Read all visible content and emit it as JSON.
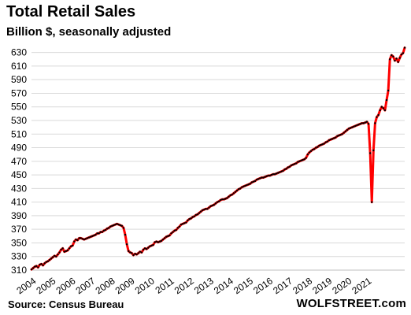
{
  "title": "Total Retail Sales",
  "subtitle": "Billion $, seasonally adjusted",
  "source": "Source: Census Bureau",
  "brand": "WOLFSTREET.com",
  "colors": {
    "line": "#ff0000",
    "markers": "#000000",
    "grid": "#d9d9d9",
    "axis": "#bfbfbf"
  },
  "chart_data": {
    "type": "line",
    "title": "Total Retail Sales",
    "subtitle": "Billion $, seasonally adjusted",
    "xlabel": "",
    "ylabel": "",
    "ylim": [
      310,
      640
    ],
    "yticks": [
      310,
      330,
      350,
      370,
      390,
      410,
      430,
      450,
      470,
      490,
      510,
      530,
      550,
      570,
      590,
      610,
      630
    ],
    "xticks": [
      "2004",
      "2005",
      "2006",
      "2007",
      "2008",
      "2009",
      "2010",
      "2011",
      "2012",
      "2013",
      "2014",
      "2015",
      "2016",
      "2017",
      "2018",
      "2019",
      "2020",
      "2021"
    ],
    "grid": true,
    "frequency": "monthly",
    "series": [
      {
        "values": [
          311,
          313,
          315,
          316,
          314,
          318,
          319,
          317,
          320,
          322,
          323,
          325,
          327,
          329,
          331,
          330,
          333,
          336,
          340,
          342,
          337,
          338,
          339,
          342,
          345,
          346,
          352,
          355,
          354,
          357,
          357,
          356,
          355,
          356,
          357,
          358,
          359,
          360,
          361,
          362,
          364,
          364,
          366,
          366,
          368,
          369,
          371,
          372,
          374,
          375,
          376,
          377,
          378,
          377,
          376,
          375,
          372,
          362,
          348,
          338,
          336,
          335,
          332,
          334,
          333,
          335,
          337,
          336,
          340,
          342,
          341,
          343,
          345,
          346,
          347,
          351,
          352,
          351,
          352,
          353,
          355,
          357,
          359,
          360,
          361,
          364,
          366,
          368,
          369,
          372,
          374,
          377,
          378,
          379,
          380,
          383,
          385,
          386,
          388,
          389,
          391,
          392,
          394,
          396,
          398,
          399,
          400,
          400,
          402,
          404,
          405,
          406,
          408,
          410,
          411,
          413,
          414,
          414,
          415,
          416,
          418,
          420,
          421,
          423,
          425,
          427,
          429,
          430,
          432,
          433,
          434,
          435,
          436,
          437,
          439,
          440,
          441,
          443,
          444,
          445,
          446,
          446,
          447,
          448,
          449,
          449,
          450,
          451,
          451,
          452,
          453,
          454,
          455,
          456,
          458,
          459,
          461,
          462,
          464,
          465,
          466,
          467,
          469,
          470,
          471,
          472,
          473,
          475,
          480,
          483,
          485,
          487,
          488,
          490,
          491,
          493,
          494,
          495,
          496,
          498,
          499,
          501,
          502,
          503,
          504,
          505,
          507,
          508,
          509,
          510,
          512,
          514,
          516,
          518,
          519,
          520,
          521,
          522,
          523,
          524,
          525,
          526,
          526,
          527,
          528,
          525,
          482,
          410,
          486,
          526,
          535,
          538,
          545,
          550,
          548,
          545,
          560,
          574,
          620,
          626,
          624,
          618,
          621,
          616,
          622,
          627,
          629,
          637
        ]
      }
    ]
  }
}
